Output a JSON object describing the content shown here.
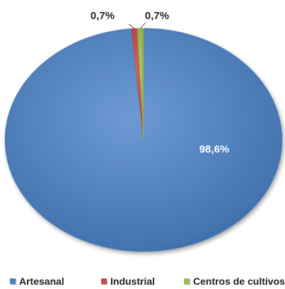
{
  "chart_data": {
    "type": "pie",
    "categories": [
      "Artesanal",
      "Industrial",
      "Centros de cultivos"
    ],
    "values": [
      98.6,
      0.7,
      0.7
    ],
    "data_labels": [
      "98,6%",
      "0,7%",
      "0,7%"
    ],
    "colors": [
      "#4f81bd",
      "#c0504d",
      "#9bbb59"
    ],
    "legend_position": "bottom"
  }
}
